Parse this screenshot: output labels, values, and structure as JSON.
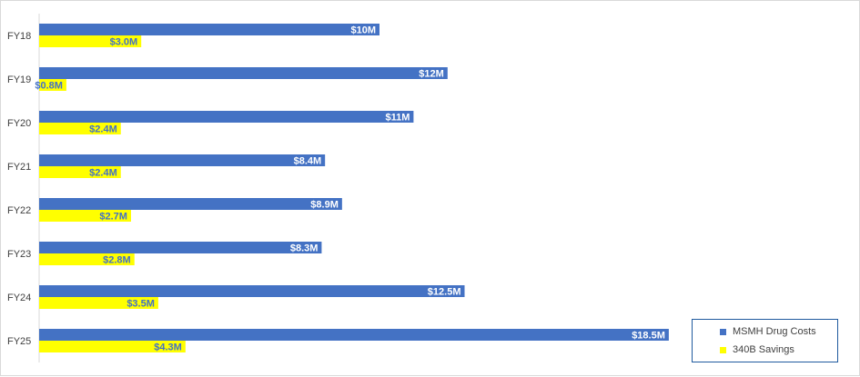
{
  "chart_data": {
    "type": "bar",
    "orientation": "horizontal",
    "categories": [
      "FY18",
      "FY19",
      "FY20",
      "FY21",
      "FY22",
      "FY23",
      "FY24",
      "FY25"
    ],
    "series": [
      {
        "name": "MSMH Drug Costs",
        "color": "#4472c4",
        "values": [
          10.0,
          12.0,
          11.0,
          8.4,
          8.9,
          8.3,
          12.5,
          18.5
        ],
        "labels": [
          "$10M",
          "$12M",
          "$11M",
          "$8.4M",
          "$8.9M",
          "$8.3M",
          "$12.5M",
          "$18.5M"
        ]
      },
      {
        "name": "340B Savings",
        "color": "#ffff00",
        "values": [
          3.0,
          0.8,
          2.4,
          2.4,
          2.7,
          2.8,
          3.5,
          4.3
        ],
        "labels": [
          "$3.0M",
          "$0.8M",
          "$2.4M",
          "$2.4M",
          "$2.7M",
          "$2.8M",
          "$3.5M",
          "$4.3M"
        ]
      }
    ],
    "xlim": [
      0,
      25
    ],
    "grid": false,
    "legend_position": "bottom-right",
    "title": "",
    "xlabel": "",
    "ylabel": ""
  }
}
